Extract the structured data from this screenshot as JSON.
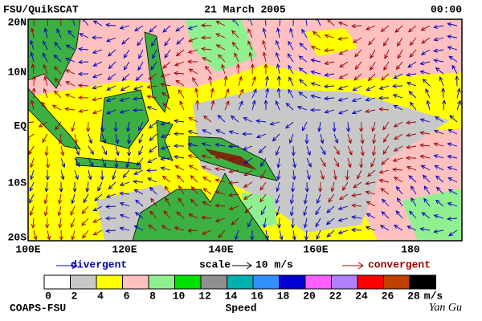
{
  "header": {
    "left": "FSU/QuikSCAT",
    "center": "21 March 2005",
    "right": "00:00"
  },
  "map": {
    "lat_labels": [
      "20N",
      "10N",
      "EQ",
      "10S",
      "20S"
    ],
    "lon_labels": [
      "100E",
      "120E",
      "140E",
      "160E",
      "180"
    ]
  },
  "legend": {
    "divergent": "divergent",
    "scale": "scale",
    "scale_value": "10 m/s",
    "convergent": "convergent"
  },
  "colorbar": {
    "labels": [
      0,
      2,
      4,
      6,
      8,
      10,
      12,
      14,
      16,
      18,
      20,
      22,
      24,
      26,
      28
    ],
    "unit": "m/s",
    "title": "Speed",
    "colors": [
      "#ffffff",
      "#c8c8c8",
      "#ffff00",
      "#ffc0c0",
      "#90f090",
      "#00e000",
      "#909090",
      "#00b0b0",
      "#3090ff",
      "#0000d0",
      "#ff60ff",
      "#b080ff",
      "#ff0000",
      "#c04000",
      "#000000"
    ]
  },
  "footer": {
    "left": "COAPS-FSU",
    "right": "Yan Gu"
  }
}
